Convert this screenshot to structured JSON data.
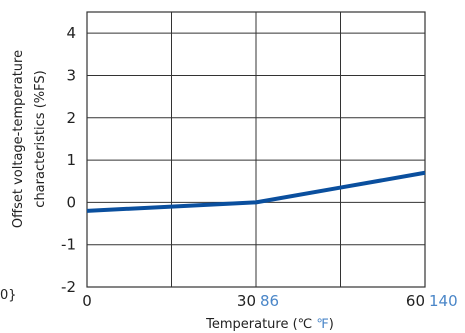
{
  "chart_data": {
    "type": "line",
    "xlabel_main": "Temperature (℃ ",
    "xlabel_unit_f": "℉",
    "xlabel_close": ")",
    "ylabel_line1": "Offset voltage-temperature",
    "ylabel_line2": "characteristics (%FS)",
    "xlim": [
      0,
      60
    ],
    "ylim": [
      -2,
      4
    ],
    "y_top_extent": 4.5,
    "x_ticks": [
      {
        "value": 0,
        "c": "0",
        "f": ""
      },
      {
        "value": 30,
        "c": "30",
        "f": "86"
      },
      {
        "value": 60,
        "c": "60",
        "f": "140"
      }
    ],
    "x_grid": [
      0,
      15,
      30,
      45,
      60
    ],
    "y_ticks": [
      {
        "value": 4,
        "label": "4"
      },
      {
        "value": 3,
        "label": "3"
      },
      {
        "value": 2,
        "label": "2"
      },
      {
        "value": 1,
        "label": "1"
      },
      {
        "value": 0,
        "label": "0"
      },
      {
        "value": -1,
        "label": "-1"
      },
      {
        "value": -2,
        "label": "-2"
      }
    ],
    "grid": true,
    "series": [
      {
        "color": "#0a4f9e",
        "x": [
          0,
          15,
          30,
          45,
          60
        ],
        "y": [
          -0.2,
          -0.1,
          0.0,
          0.35,
          0.7
        ]
      }
    ],
    "edge_glyph": "0}"
  }
}
